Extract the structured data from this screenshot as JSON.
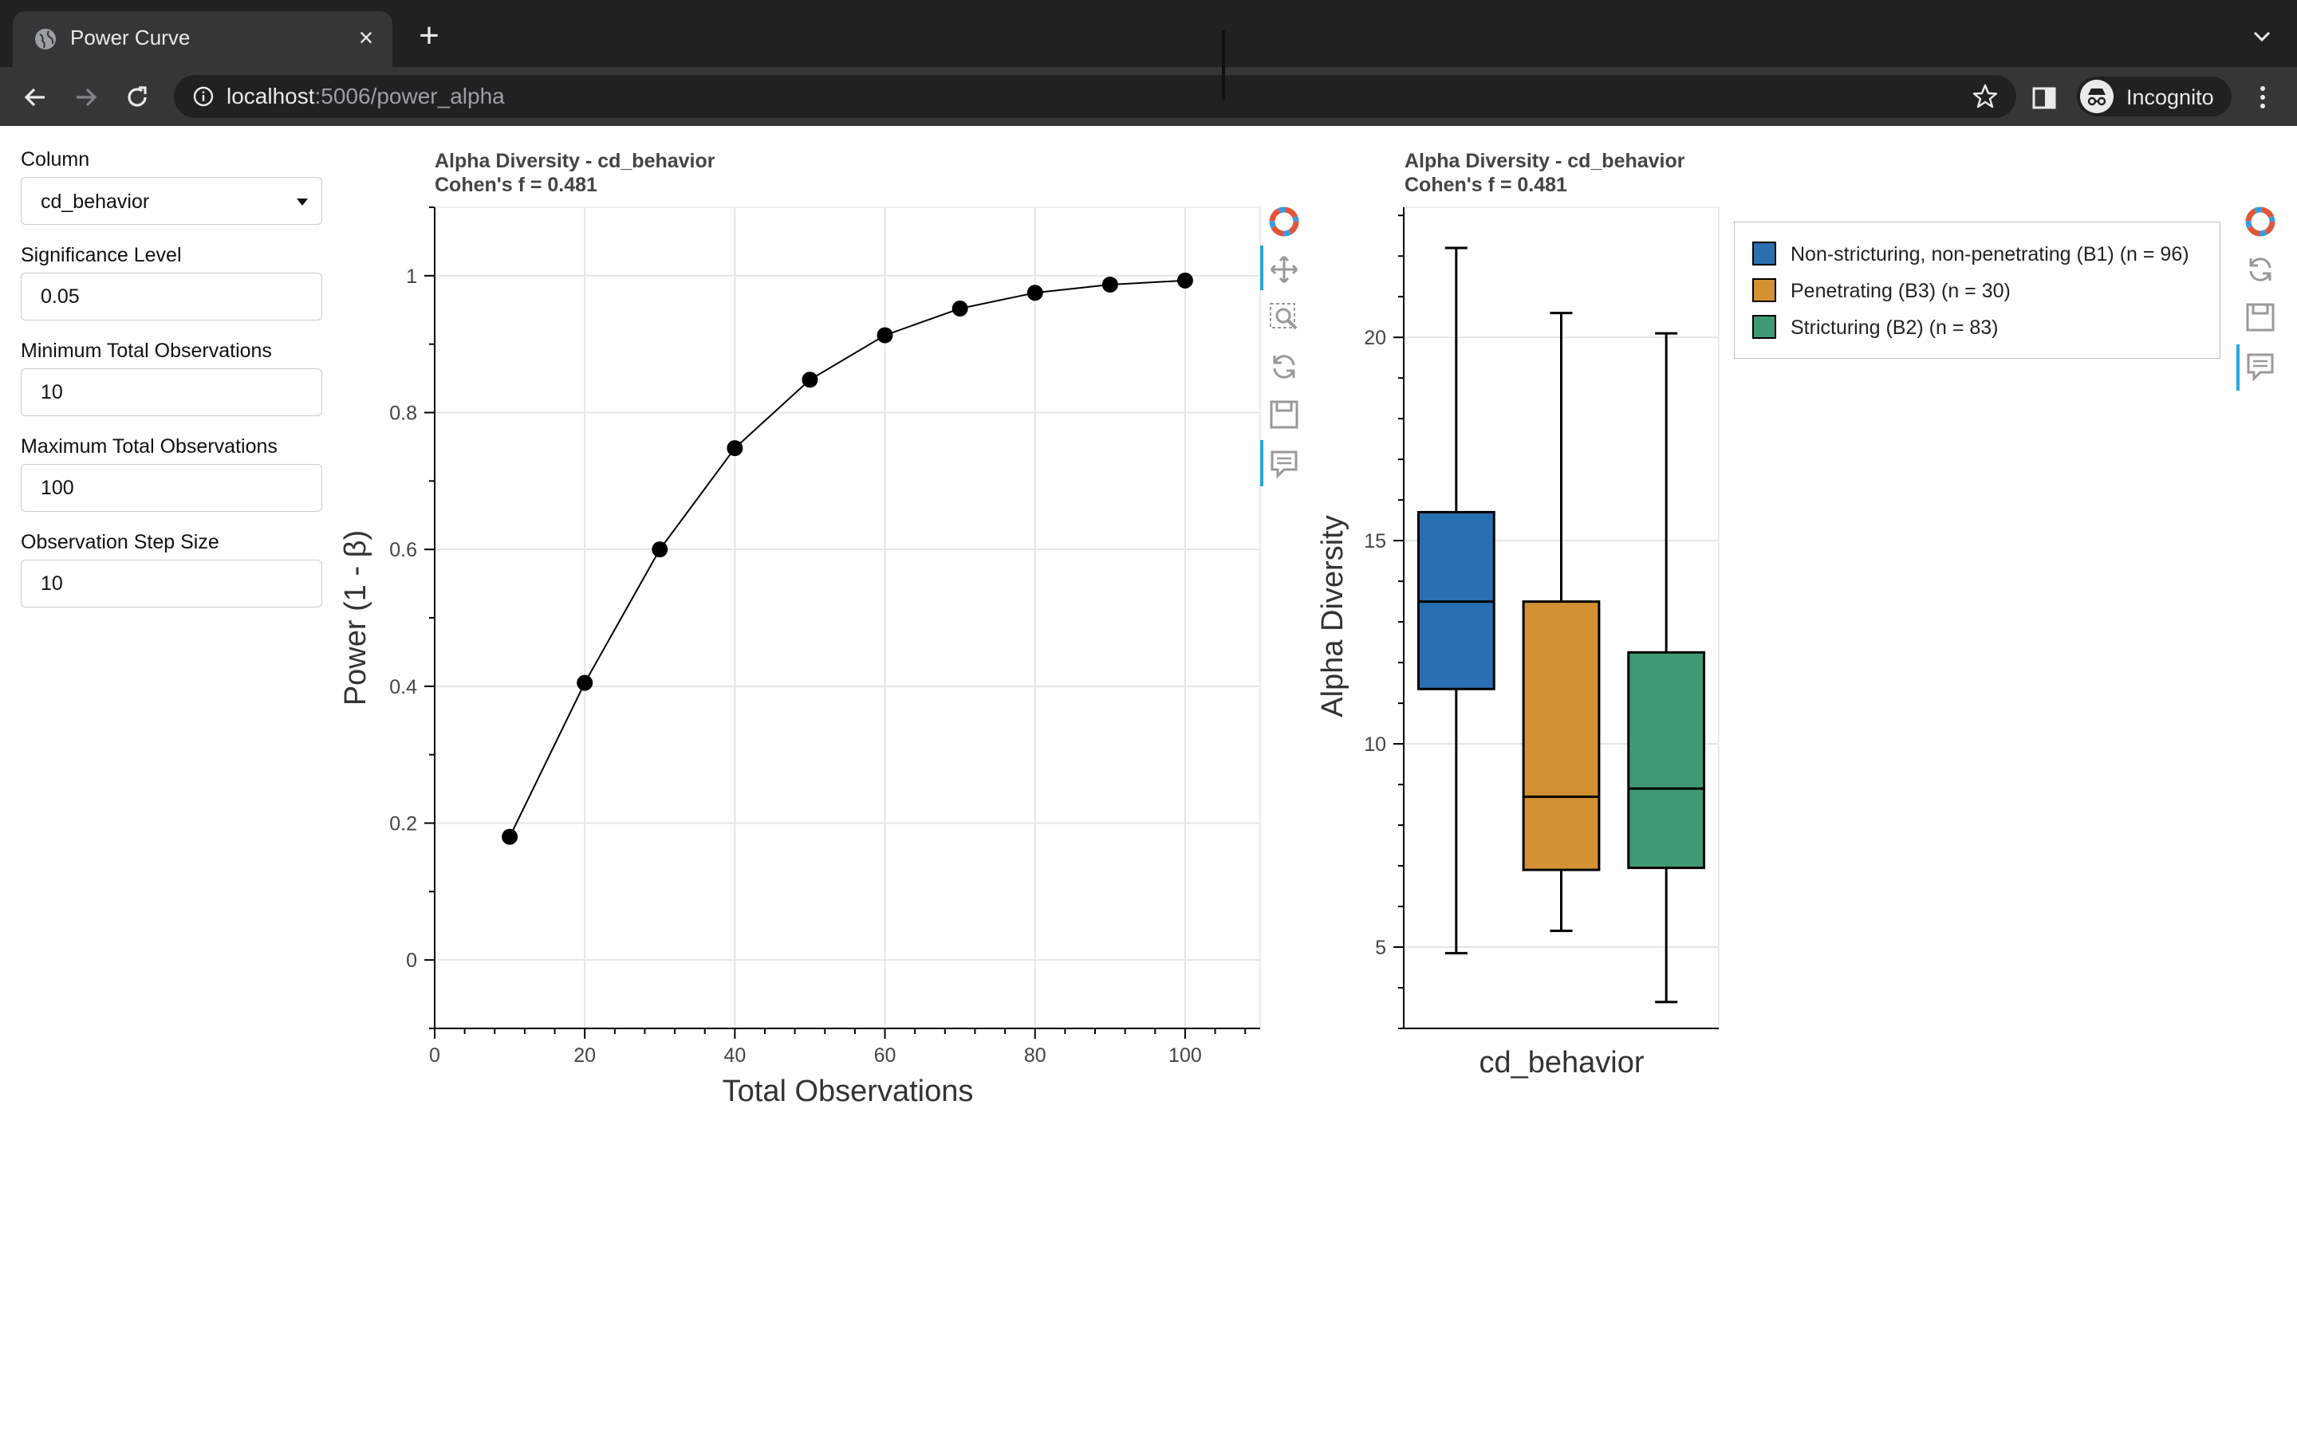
{
  "browser": {
    "tab_title": "Power Curve",
    "url_host": "localhost",
    "url_rest": ":5006/power_alpha",
    "profile_label": "Incognito"
  },
  "widgets": {
    "column": {
      "label": "Column",
      "value": "cd_behavior"
    },
    "significance": {
      "label": "Significance Level",
      "value": "0.05"
    },
    "min_obs": {
      "label": "Minimum Total Observations",
      "value": "10"
    },
    "max_obs": {
      "label": "Maximum Total Observations",
      "value": "100"
    },
    "step": {
      "label": "Observation Step Size",
      "value": "10"
    }
  },
  "power_plot": {
    "title_line1": "Alpha Diversity - cd_behavior",
    "title_line2": "Cohen's f = 0.481"
  },
  "box_plot": {
    "title_line1": "Alpha Diversity - cd_behavior",
    "title_line2": "Cohen's f = 0.481"
  },
  "chart_data": [
    {
      "type": "line",
      "xlabel": "Total Observations",
      "ylabel": "Power (1 - β)",
      "xlim": [
        0,
        110
      ],
      "ylim": [
        -0.1,
        1.1
      ],
      "xticks": [
        0,
        20,
        40,
        60,
        80,
        100
      ],
      "yticks": [
        0,
        0.2,
        0.4,
        0.6,
        0.8,
        1
      ],
      "ytick_labels": [
        "0",
        "0.2",
        "0.4",
        "0.6",
        "0.8",
        "1"
      ],
      "grid": true,
      "x": [
        10,
        20,
        30,
        40,
        50,
        60,
        70,
        80,
        90,
        100
      ],
      "y": [
        0.18,
        0.405,
        0.6,
        0.748,
        0.848,
        0.913,
        0.952,
        0.975,
        0.987,
        0.993
      ]
    },
    {
      "type": "box",
      "xlabel": "cd_behavior",
      "ylabel": "Alpha Diversity",
      "ylim": [
        3.0,
        23.2
      ],
      "yticks": [
        5,
        10,
        15,
        20
      ],
      "grid": true,
      "legend_position": "top-right",
      "groups": [
        {
          "name": "Non-stricturing, non-penetrating (B1) (n = 96)",
          "color": "#2a6fb0",
          "min": 4.85,
          "q1": 11.35,
          "median": 13.5,
          "q3": 15.7,
          "max": 22.2
        },
        {
          "name": "Penetrating (B3) (n = 30)",
          "color": "#d49132",
          "min": 5.4,
          "q1": 6.9,
          "median": 8.7,
          "q3": 13.5,
          "max": 20.6
        },
        {
          "name": "Stricturing (B2) (n = 83)",
          "color": "#3e9a74",
          "min": 3.65,
          "q1": 6.95,
          "median": 8.9,
          "q3": 12.25,
          "max": 20.1
        }
      ]
    }
  ]
}
